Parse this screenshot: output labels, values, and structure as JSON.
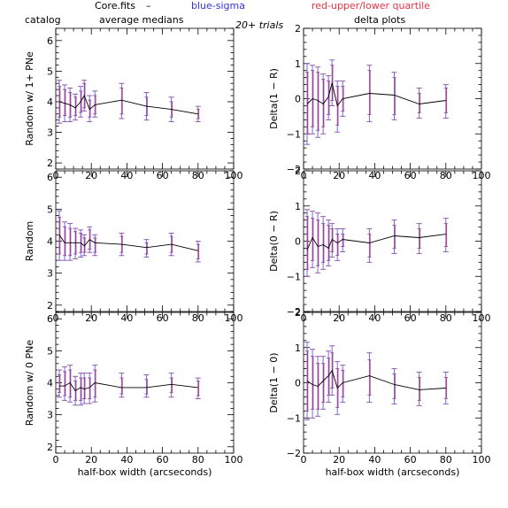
{
  "header": {
    "title": "Core.fits",
    "dash": "–",
    "blue_label": "blue-sigma",
    "red_label": "red-upper/lower quartile",
    "blue_color": "#3333dd",
    "red_color": "#ee3344",
    "left_col_label": "catalog",
    "left_col_sub": "average medians",
    "trials": "20+ trials",
    "right_col_label": "delta plots"
  },
  "chart_data": [
    {
      "type": "line",
      "panel": "left-top",
      "ylabel": "Random w/ 1+ PNe",
      "xlabel": "",
      "xlim": [
        0,
        100
      ],
      "ylim": [
        1.8,
        6.4
      ],
      "xticks": [
        "0",
        "20",
        "40",
        "60",
        "80",
        "100"
      ],
      "yticks": [
        "2",
        "3",
        "4",
        "5",
        "6"
      ],
      "x": [
        2,
        5,
        8,
        11,
        14,
        16,
        19,
        22,
        37,
        51,
        65,
        80
      ],
      "y": [
        4.0,
        3.95,
        3.9,
        3.8,
        4.0,
        4.2,
        3.75,
        3.9,
        4.05,
        3.85,
        3.75,
        3.6
      ],
      "sigma_low": [
        3.3,
        3.35,
        3.35,
        3.4,
        3.5,
        3.7,
        3.35,
        3.5,
        3.45,
        3.4,
        3.35,
        3.35
      ],
      "sigma_high": [
        4.7,
        4.55,
        4.45,
        4.25,
        4.5,
        4.7,
        4.2,
        4.35,
        4.6,
        4.3,
        4.15,
        3.85
      ],
      "quart_low": [
        3.5,
        3.55,
        3.5,
        3.55,
        3.65,
        3.8,
        3.5,
        3.6,
        3.6,
        3.55,
        3.5,
        3.45
      ],
      "quart_high": [
        4.5,
        4.4,
        4.3,
        4.15,
        4.35,
        4.6,
        4.05,
        4.2,
        4.45,
        4.15,
        4.0,
        3.75
      ]
    },
    {
      "type": "line",
      "panel": "right-top",
      "ylabel": "Delta(1 − R)",
      "xlabel": "",
      "xlim": [
        0,
        100
      ],
      "ylim": [
        -2,
        2
      ],
      "xticks": [
        "0",
        "20",
        "40",
        "60",
        "80",
        "100"
      ],
      "yticks": [
        "−2",
        "−1",
        "0",
        "1",
        "2"
      ],
      "x": [
        2,
        5,
        8,
        11,
        14,
        16,
        19,
        22,
        37,
        51,
        65,
        80
      ],
      "y": [
        -0.15,
        0.0,
        -0.05,
        -0.15,
        0.05,
        0.45,
        -0.2,
        0.0,
        0.15,
        0.1,
        -0.15,
        -0.05
      ],
      "sigma_low": [
        -1.3,
        -1.0,
        -1.1,
        -1.0,
        -0.6,
        -0.2,
        -0.95,
        -0.5,
        -0.65,
        -0.6,
        -0.55,
        -0.55
      ],
      "sigma_high": [
        1.0,
        0.95,
        0.9,
        0.7,
        0.65,
        1.1,
        0.5,
        0.5,
        0.95,
        0.75,
        0.3,
        0.4
      ],
      "quart_low": [
        -1.0,
        -0.8,
        -0.9,
        -0.8,
        -0.45,
        -0.05,
        -0.75,
        -0.35,
        -0.45,
        -0.45,
        -0.4,
        -0.4
      ],
      "quart_high": [
        0.75,
        0.8,
        0.75,
        0.55,
        0.5,
        0.95,
        0.35,
        0.35,
        0.8,
        0.6,
        0.15,
        0.3
      ]
    },
    {
      "type": "line",
      "panel": "left-middle",
      "ylabel": "Random",
      "xlabel": "",
      "xlim": [
        0,
        100
      ],
      "ylim": [
        1.8,
        6.2
      ],
      "xticks": [
        "0",
        "20",
        "40",
        "60",
        "80",
        "100"
      ],
      "yticks": [
        "2",
        "3",
        "4",
        "5",
        "6"
      ],
      "x": [
        2,
        5,
        8,
        11,
        14,
        16,
        19,
        22,
        37,
        51,
        65,
        80
      ],
      "y": [
        4.2,
        3.95,
        3.95,
        3.95,
        3.95,
        3.85,
        4.05,
        3.95,
        3.9,
        3.8,
        3.9,
        3.7
      ],
      "sigma_low": [
        3.4,
        3.4,
        3.4,
        3.45,
        3.5,
        3.55,
        3.65,
        3.55,
        3.55,
        3.5,
        3.55,
        3.35
      ],
      "sigma_high": [
        4.95,
        4.6,
        4.55,
        4.4,
        4.35,
        4.2,
        4.45,
        4.2,
        4.25,
        4.05,
        4.25,
        4.0
      ],
      "quart_low": [
        3.6,
        3.55,
        3.55,
        3.6,
        3.65,
        3.65,
        3.75,
        3.65,
        3.65,
        3.6,
        3.65,
        3.45
      ],
      "quart_high": [
        4.75,
        4.45,
        4.4,
        4.3,
        4.25,
        4.1,
        4.35,
        4.1,
        4.15,
        3.95,
        4.15,
        3.9
      ]
    },
    {
      "type": "line",
      "panel": "right-middle",
      "ylabel": "Delta(0 − R)",
      "xlabel": "",
      "xlim": [
        0,
        100
      ],
      "ylim": [
        -2,
        2
      ],
      "xticks": [
        "0",
        "20",
        "40",
        "60",
        "80",
        "100"
      ],
      "yticks": [
        "−2",
        "−1",
        "0",
        "1",
        "2"
      ],
      "x": [
        2,
        5,
        8,
        11,
        14,
        16,
        19,
        22,
        37,
        51,
        65,
        80
      ],
      "y": [
        -0.25,
        0.1,
        -0.15,
        -0.1,
        -0.2,
        0.05,
        -0.05,
        0.05,
        -0.05,
        0.15,
        0.1,
        0.2
      ],
      "sigma_low": [
        -1.0,
        -0.75,
        -0.9,
        -0.8,
        -0.7,
        -0.45,
        -0.55,
        -0.3,
        -0.6,
        -0.35,
        -0.35,
        -0.3
      ],
      "sigma_high": [
        0.9,
        0.85,
        0.8,
        0.7,
        0.6,
        0.5,
        0.35,
        0.35,
        0.35,
        0.6,
        0.5,
        0.65
      ],
      "quart_low": [
        -0.8,
        -0.55,
        -0.7,
        -0.6,
        -0.55,
        -0.3,
        -0.4,
        -0.15,
        -0.45,
        -0.2,
        -0.2,
        -0.15
      ],
      "quart_high": [
        0.7,
        0.65,
        0.6,
        0.5,
        0.45,
        0.35,
        0.2,
        0.2,
        0.2,
        0.45,
        0.35,
        0.5
      ]
    },
    {
      "type": "line",
      "panel": "left-bottom",
      "ylabel": "Random w/ 0 PNe",
      "xlabel": "half-box width (arcseconds)",
      "xlim": [
        0,
        100
      ],
      "ylim": [
        1.8,
        6.2
      ],
      "xticks": [
        "0",
        "20",
        "40",
        "60",
        "80",
        "100"
      ],
      "yticks": [
        "2",
        "3",
        "4",
        "5",
        "6"
      ],
      "x": [
        2,
        5,
        8,
        11,
        14,
        16,
        19,
        22,
        37,
        51,
        65,
        80
      ],
      "y": [
        3.9,
        3.9,
        4.0,
        3.75,
        3.85,
        3.8,
        3.85,
        4.0,
        3.85,
        3.85,
        3.95,
        3.85
      ],
      "sigma_low": [
        3.55,
        3.45,
        3.4,
        3.3,
        3.3,
        3.35,
        3.35,
        3.4,
        3.55,
        3.55,
        3.55,
        3.5
      ],
      "sigma_high": [
        4.4,
        4.5,
        4.55,
        4.2,
        4.3,
        4.3,
        4.3,
        4.55,
        4.3,
        4.25,
        4.3,
        4.15
      ],
      "quart_low": [
        3.7,
        3.6,
        3.55,
        3.45,
        3.45,
        3.5,
        3.5,
        3.55,
        3.65,
        3.65,
        3.7,
        3.6
      ],
      "quart_high": [
        4.25,
        4.35,
        4.4,
        4.05,
        4.15,
        4.15,
        4.15,
        4.4,
        4.15,
        4.1,
        4.15,
        4.05
      ]
    },
    {
      "type": "line",
      "panel": "right-bottom",
      "ylabel": "Delta(1 − 0)",
      "xlabel": "half-box width (arcseconds)",
      "xlim": [
        0,
        100
      ],
      "ylim": [
        -2,
        2
      ],
      "xticks": [
        "0",
        "20",
        "40",
        "60",
        "80",
        "100"
      ],
      "yticks": [
        "−2",
        "−1",
        "0",
        "1",
        "2"
      ],
      "x": [
        2,
        5,
        8,
        11,
        14,
        16,
        19,
        22,
        37,
        51,
        65,
        80
      ],
      "y": [
        0.05,
        -0.05,
        -0.1,
        0.05,
        0.2,
        0.35,
        -0.15,
        0.0,
        0.2,
        -0.05,
        -0.2,
        -0.15
      ],
      "sigma_low": [
        -1.05,
        -1.0,
        -0.95,
        -0.75,
        -0.55,
        -0.35,
        -0.9,
        -0.55,
        -0.55,
        -0.6,
        -0.65,
        -0.6
      ],
      "sigma_high": [
        1.15,
        0.95,
        0.75,
        0.75,
        0.9,
        1.05,
        0.6,
        0.5,
        0.85,
        0.4,
        0.3,
        0.3
      ],
      "quart_low": [
        -0.8,
        -0.75,
        -0.75,
        -0.55,
        -0.35,
        -0.15,
        -0.7,
        -0.4,
        -0.35,
        -0.45,
        -0.5,
        -0.45
      ],
      "quart_high": [
        0.9,
        0.75,
        0.55,
        0.55,
        0.7,
        0.85,
        0.4,
        0.35,
        0.65,
        0.25,
        0.15,
        0.15
      ]
    }
  ]
}
